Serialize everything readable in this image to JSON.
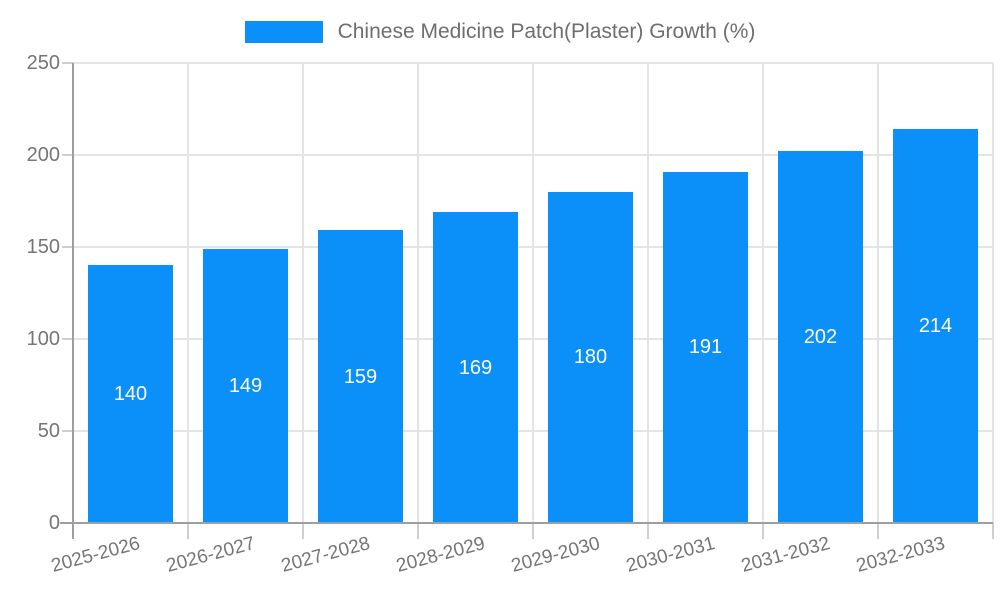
{
  "legend": {
    "label": "Chinese Medicine Patch(Plaster) Growth (%)"
  },
  "chart_data": {
    "type": "bar",
    "title": "Chinese Medicine Patch(Plaster) Growth (%)",
    "series_name": "Chinese Medicine Patch(Plaster) Growth (%)",
    "categories": [
      "2025-2026",
      "2026-2027",
      "2027-2028",
      "2028-2029",
      "2029-2030",
      "2030-2031",
      "2031-2032",
      "2032-2033"
    ],
    "values": [
      140,
      149,
      159,
      169,
      180,
      191,
      202,
      214
    ],
    "xlabel": "",
    "ylabel": "",
    "ylim": [
      0,
      250
    ],
    "yticks": [
      0,
      50,
      100,
      150,
      200,
      250
    ],
    "grid": true,
    "legend_position": "top-center",
    "x_label_rotation_deg": -15,
    "colors": {
      "bar": "#0a90f8",
      "value_label": "#ffffff",
      "axis_line": "#9e9e9e",
      "gridline": "#e4e4e4",
      "tick_mark": "#cfcfcf",
      "tick_label": "#757575",
      "legend_text": "#6e6e6e",
      "background": "#ffffff"
    }
  }
}
